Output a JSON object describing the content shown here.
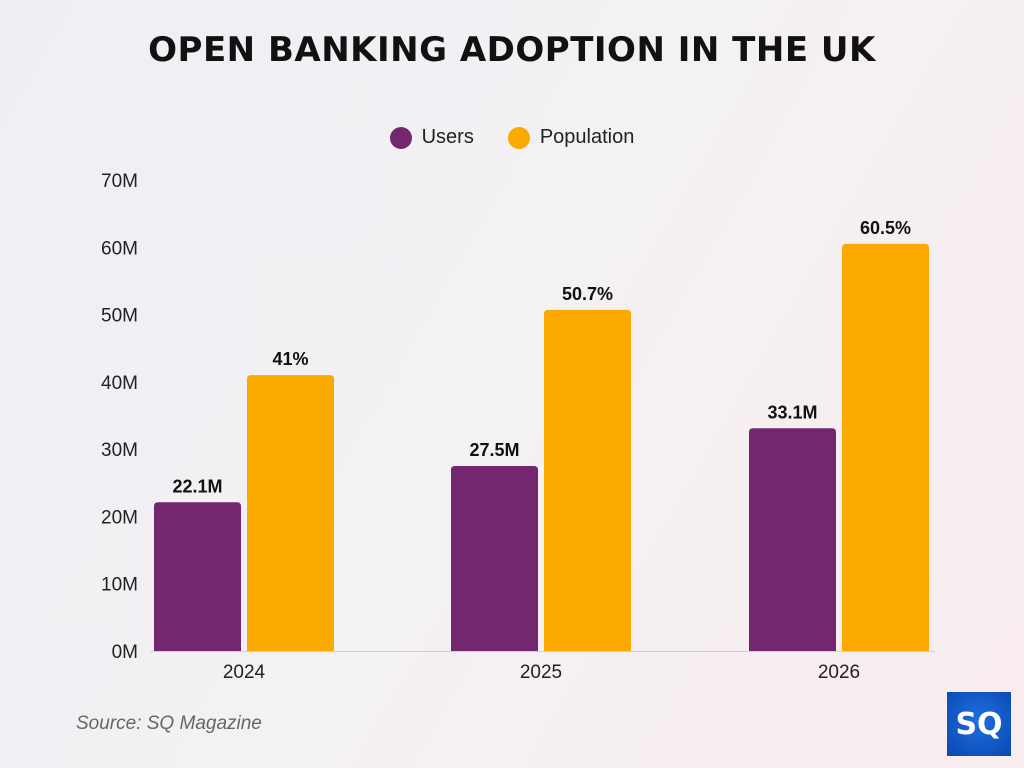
{
  "chart_data": {
    "type": "bar",
    "title": "OPEN BANKING ADOPTION IN THE UK",
    "categories": [
      "2024",
      "2025",
      "2026"
    ],
    "series": [
      {
        "name": "Users",
        "values": [
          22.1,
          27.5,
          33.1
        ],
        "labels": [
          "22.1M",
          "27.5M",
          "33.1M"
        ],
        "color": "#72276e"
      },
      {
        "name": "Population",
        "values": [
          41,
          50.7,
          60.5
        ],
        "labels": [
          "41%",
          "50.7%",
          "60.5%"
        ],
        "color": "#fba800"
      }
    ],
    "yticks": [
      "0M",
      "10M",
      "20M",
      "30M",
      "40M",
      "50M",
      "60M",
      "70M"
    ],
    "ylim": [
      0,
      70
    ],
    "grid": false,
    "legend": "top-center"
  },
  "source": "Source: SQ Magazine",
  "logo_text": "SQ"
}
